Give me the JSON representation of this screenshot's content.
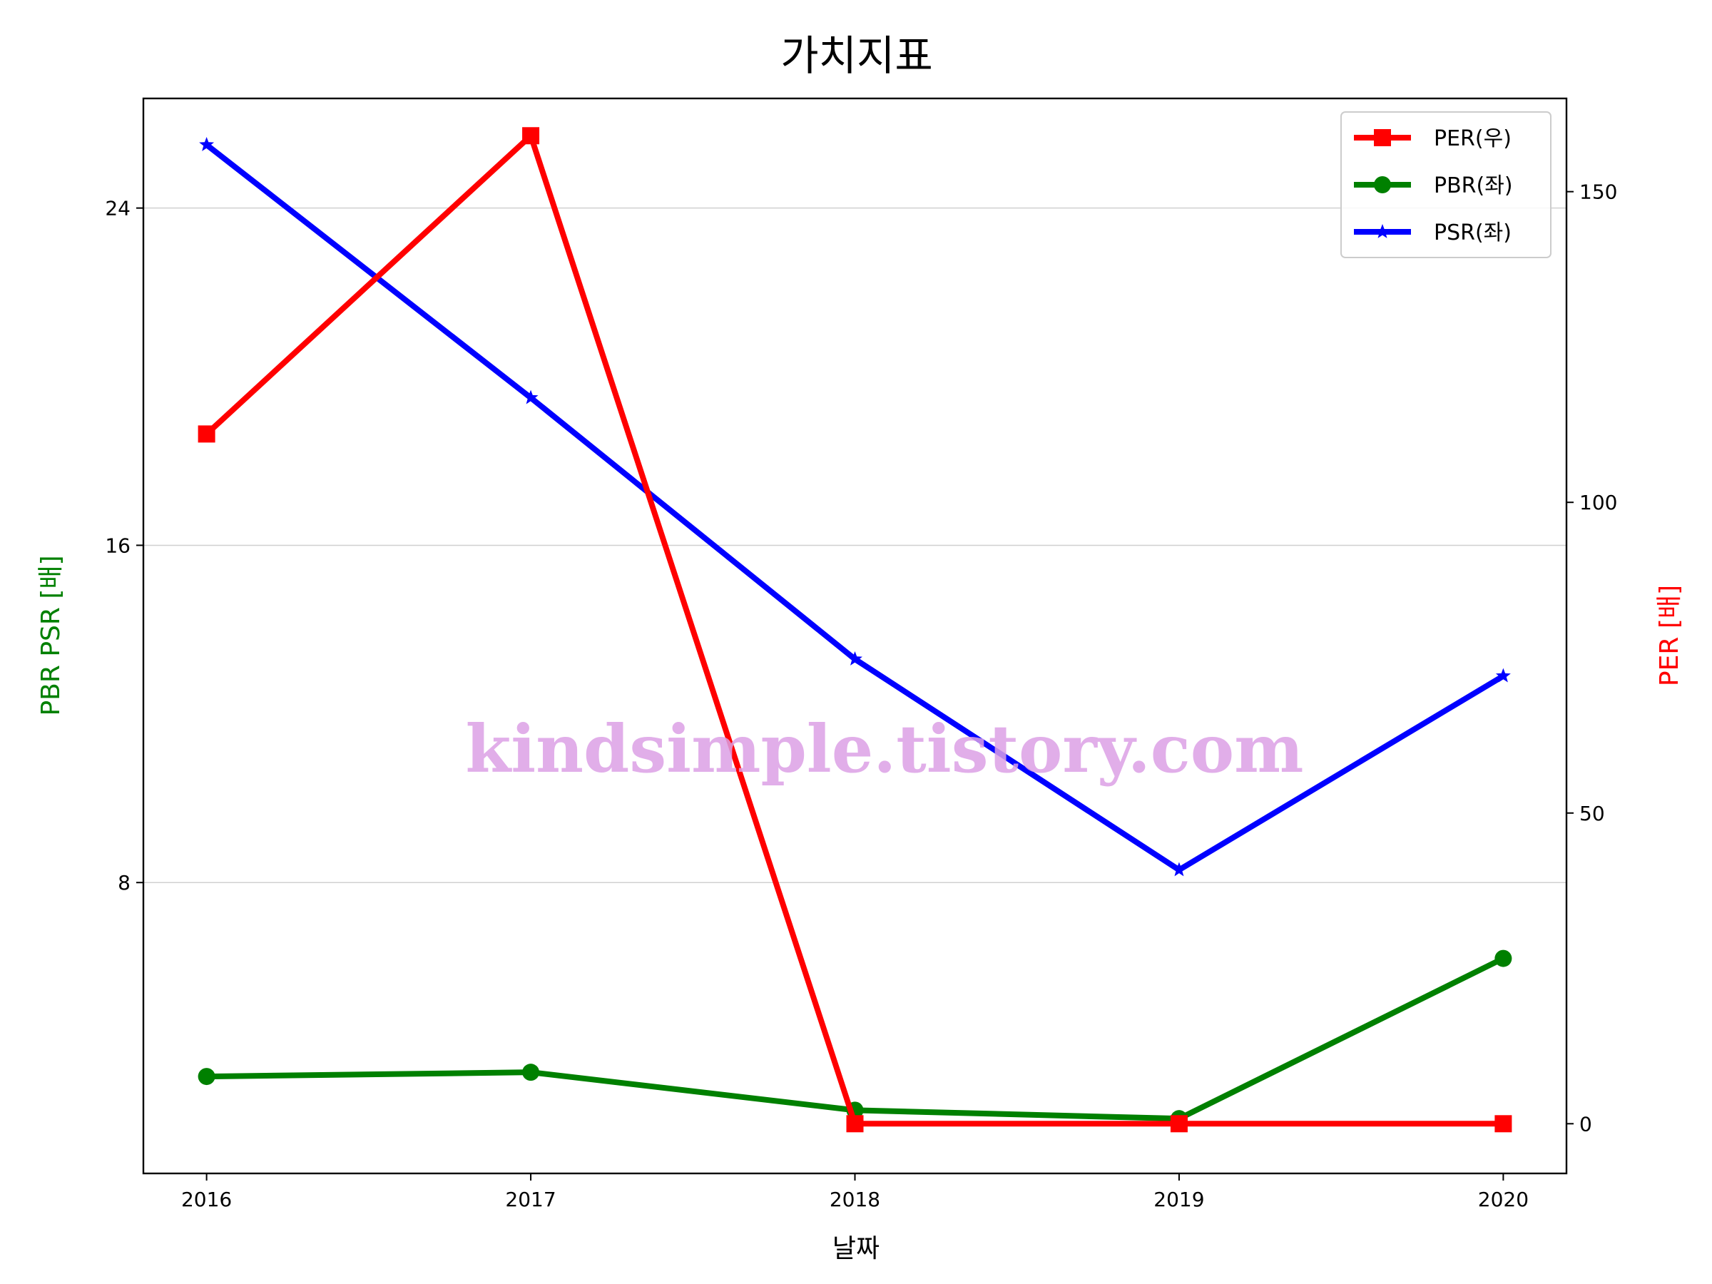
{
  "chart_data": {
    "type": "line",
    "title": "가치지표",
    "xlabel": "날짜",
    "ylabel_left": "PBR PSR [배]",
    "ylabel_right": "PER [배]",
    "x": [
      2016,
      2017,
      2018,
      2019,
      2020
    ],
    "xticks": [
      "2016",
      "2017",
      "2018",
      "2019",
      "2020"
    ],
    "ylim_left": [
      1.1,
      26.6
    ],
    "yticks_left": [
      8,
      16,
      24
    ],
    "ylim_right": [
      -8,
      165
    ],
    "yticks_right": [
      0,
      50,
      100,
      150
    ],
    "grid": "horizontal",
    "legend_position": "top-right",
    "series": [
      {
        "name": "PER(우)",
        "axis": "right",
        "color": "#ff0000",
        "marker": "square",
        "values": [
          111,
          159,
          0,
          0,
          0
        ]
      },
      {
        "name": "PBR(좌)",
        "axis": "left",
        "color": "#008000",
        "marker": "circle",
        "values": [
          3.4,
          3.5,
          2.6,
          2.4,
          6.2
        ]
      },
      {
        "name": "PSR(좌)",
        "axis": "left",
        "color": "#0000ff",
        "marker": "star",
        "values": [
          25.5,
          19.5,
          13.3,
          8.3,
          12.9
        ]
      }
    ],
    "watermark": "kindsimple.tistory.com"
  }
}
